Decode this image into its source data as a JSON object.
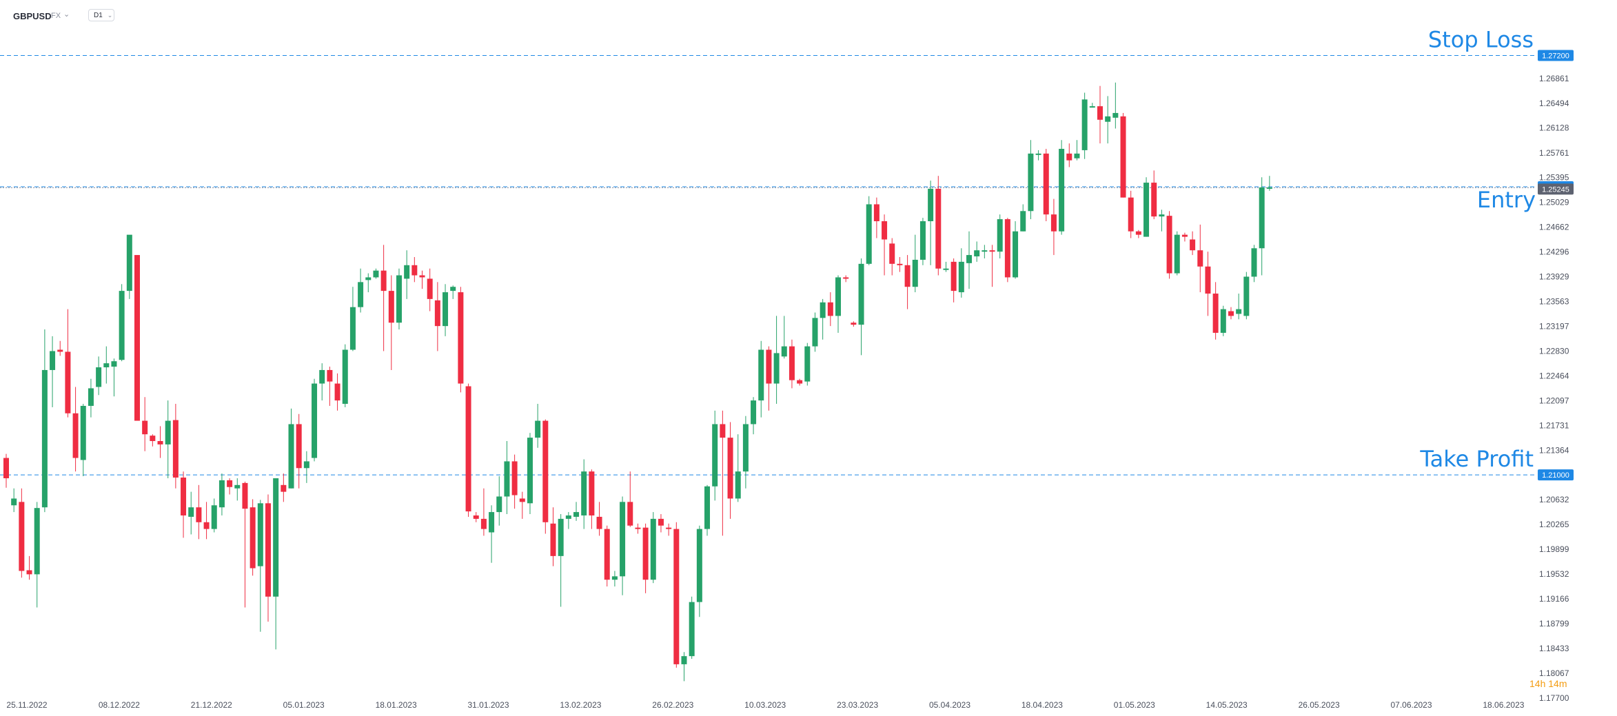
{
  "toolbar": {
    "symbol": "GBPUSD",
    "market": "FX",
    "timeframe": "D1"
  },
  "countdown": "14h 14m",
  "chart_data": {
    "type": "candlestick",
    "title": "",
    "xlabel": "",
    "ylabel": "",
    "ylim": [
      1.177,
      1.2746
    ],
    "y_ticks": [
      "1.27227",
      "1.26861",
      "1.26494",
      "1.26128",
      "1.25761",
      "1.25395",
      "1.25029",
      "1.24662",
      "1.24296",
      "1.23929",
      "1.23563",
      "1.23197",
      "1.22830",
      "1.22464",
      "1.22097",
      "1.21731",
      "1.21364",
      "1.20998",
      "1.20632",
      "1.20265",
      "1.19899",
      "1.19532",
      "1.19166",
      "1.18799",
      "1.18433",
      "1.18067",
      "1.17700"
    ],
    "x_ticks": [
      "25.11.2022",
      "08.12.2022",
      "21.12.2022",
      "05.01.2023",
      "18.01.2023",
      "31.01.2023",
      "13.02.2023",
      "26.02.2023",
      "10.03.2023",
      "23.03.2023",
      "05.04.2023",
      "18.04.2023",
      "01.05.2023",
      "14.05.2023",
      "26.05.2023",
      "07.06.2023",
      "18.06.2023"
    ],
    "current_price": "1.25245",
    "colors": {
      "up": "#26a269",
      "down": "#ef2d42",
      "level": "#1e88e5"
    },
    "levels": [
      {
        "name": "Stop Loss",
        "price": 1.272,
        "label": "1.27200"
      },
      {
        "name": "Entry",
        "price": 1.2526,
        "label": "1.25260"
      },
      {
        "name": "Take Profit",
        "price": 1.21,
        "label": "1.21000"
      }
    ],
    "candles": [
      [
        1.2125,
        1.2095,
        1.2131,
        1.2081
      ],
      [
        1.2055,
        1.2065,
        1.208,
        1.2045
      ],
      [
        1.206,
        1.1958,
        1.208,
        1.1948
      ],
      [
        1.1959,
        1.1953,
        1.198,
        1.1945
      ],
      [
        1.1953,
        1.2051,
        1.206,
        1.1904
      ],
      [
        1.2052,
        1.2255,
        1.2315,
        1.2045
      ],
      [
        1.2255,
        1.2283,
        1.2305,
        1.22
      ],
      [
        1.2285,
        1.2282,
        1.2298,
        1.2276
      ],
      [
        1.2282,
        1.2191,
        1.2345,
        1.2185
      ],
      [
        1.2191,
        1.2125,
        1.223,
        1.2105
      ],
      [
        1.2122,
        1.2202,
        1.2205,
        1.2098
      ],
      [
        1.2202,
        1.2228,
        1.2242,
        1.2185
      ],
      [
        1.223,
        1.2259,
        1.2275,
        1.2218
      ],
      [
        1.2259,
        1.2265,
        1.229,
        1.2235
      ],
      [
        1.226,
        1.2268,
        1.2272,
        1.2216
      ],
      [
        1.227,
        1.2372,
        1.2382,
        1.2268
      ],
      [
        1.2372,
        1.2455,
        1.2448,
        1.236
      ],
      [
        1.2425,
        1.218,
        1.2425,
        1.218
      ],
      [
        1.218,
        1.216,
        1.2215,
        1.2135
      ],
      [
        1.2158,
        1.215,
        1.216,
        1.2142
      ],
      [
        1.215,
        1.2145,
        1.2172,
        1.2125
      ],
      [
        1.2145,
        1.218,
        1.221,
        1.2095
      ],
      [
        1.2181,
        1.2096,
        1.2205,
        1.208
      ],
      [
        1.2096,
        1.204,
        1.2105,
        1.2007
      ],
      [
        1.2038,
        1.2052,
        1.2075,
        1.2012
      ],
      [
        1.2052,
        1.203,
        1.2085,
        1.2005
      ],
      [
        1.203,
        1.202,
        1.206,
        1.2005
      ],
      [
        1.202,
        1.2055,
        1.2065,
        1.2015
      ],
      [
        1.2052,
        1.2092,
        1.2102,
        1.204
      ],
      [
        1.2092,
        1.2082,
        1.2095,
        1.2071
      ],
      [
        1.208,
        1.2085,
        1.2095,
        1.2062
      ],
      [
        1.2088,
        1.205,
        1.209,
        1.1904
      ],
      [
        1.2052,
        1.1962,
        1.2064,
        1.1951
      ],
      [
        1.1965,
        1.2058,
        1.2063,
        1.1868
      ],
      [
        1.2058,
        1.192,
        1.2071,
        1.1883
      ],
      [
        1.192,
        1.2095,
        1.2095,
        1.1842
      ],
      [
        1.2085,
        1.2075,
        1.2102,
        1.206
      ],
      [
        1.208,
        1.2175,
        1.2198,
        1.208
      ],
      [
        1.2175,
        1.211,
        1.219,
        1.208
      ],
      [
        1.211,
        1.212,
        1.2135,
        1.2088
      ],
      [
        1.2125,
        1.2235,
        1.2242,
        1.212
      ],
      [
        1.2235,
        1.2255,
        1.2265,
        1.221
      ],
      [
        1.2255,
        1.2238,
        1.226,
        1.2202
      ],
      [
        1.2235,
        1.221,
        1.225,
        1.2195
      ],
      [
        1.2205,
        1.2285,
        1.2293,
        1.22
      ],
      [
        1.2285,
        1.2348,
        1.2378,
        1.2283
      ],
      [
        1.2348,
        1.2385,
        1.2405,
        1.234
      ],
      [
        1.2388,
        1.2392,
        1.2398,
        1.237
      ],
      [
        1.2392,
        1.2402,
        1.2405,
        1.239
      ],
      [
        1.2402,
        1.2372,
        1.244,
        1.2283
      ],
      [
        1.2372,
        1.2325,
        1.2395,
        1.2255
      ],
      [
        1.2325,
        1.2395,
        1.2405,
        1.2315
      ],
      [
        1.239,
        1.241,
        1.2432,
        1.236
      ],
      [
        1.241,
        1.2395,
        1.2422,
        1.2385
      ],
      [
        1.2395,
        1.2392,
        1.2402,
        1.2375
      ],
      [
        1.239,
        1.236,
        1.2405,
        1.2342
      ],
      [
        1.2358,
        1.232,
        1.2385,
        1.2283
      ],
      [
        1.232,
        1.237,
        1.2382,
        1.2305
      ],
      [
        1.2372,
        1.2378,
        1.238,
        1.236
      ],
      [
        1.237,
        1.2235,
        1.2378,
        1.2222
      ],
      [
        1.2231,
        1.2046,
        1.2235,
        1.2038
      ],
      [
        1.204,
        1.2035,
        1.2045,
        1.203
      ],
      [
        1.2035,
        1.202,
        1.208,
        1.201
      ],
      [
        1.2015,
        1.2045,
        1.2055,
        1.197
      ],
      [
        1.2045,
        1.2068,
        1.2098,
        1.2025
      ],
      [
        1.2068,
        1.212,
        1.215,
        1.2042
      ],
      [
        1.212,
        1.207,
        1.213,
        1.205
      ],
      [
        1.2065,
        1.206,
        1.2075,
        1.2035
      ],
      [
        1.2058,
        1.2155,
        1.2162,
        1.2042
      ],
      [
        1.2155,
        1.218,
        1.2205,
        1.214
      ],
      [
        1.218,
        1.203,
        1.2182,
        1.2013
      ],
      [
        1.2028,
        1.198,
        1.2052,
        1.1965
      ],
      [
        1.198,
        1.2035,
        1.2042,
        1.1905
      ],
      [
        1.2035,
        1.204,
        1.2045,
        1.202
      ],
      [
        1.2038,
        1.2045,
        1.206,
        1.2032
      ],
      [
        1.204,
        1.2105,
        1.2123,
        1.202
      ],
      [
        1.2105,
        1.204,
        1.2108,
        1.202
      ],
      [
        1.2038,
        1.202,
        1.206,
        1.201
      ],
      [
        1.202,
        1.1945,
        1.2025,
        1.1935
      ],
      [
        1.1945,
        1.195,
        1.1958,
        1.1935
      ],
      [
        1.195,
        1.206,
        1.2068,
        1.1922
      ],
      [
        1.206,
        1.2025,
        1.2105,
        1.2023
      ],
      [
        1.2022,
        1.202,
        1.2028,
        1.2013
      ],
      [
        1.2022,
        1.1945,
        1.2028,
        1.1925
      ],
      [
        1.1945,
        1.2035,
        1.2045,
        1.194
      ],
      [
        1.2035,
        1.2025,
        1.2042,
        1.2015
      ],
      [
        1.2022,
        1.202,
        1.2028,
        1.201
      ],
      [
        1.202,
        1.182,
        1.203,
        1.1815
      ],
      [
        1.182,
        1.1832,
        1.1838,
        1.1795
      ],
      [
        1.1832,
        1.1912,
        1.192,
        1.1828
      ],
      [
        1.1912,
        1.202,
        1.2025,
        1.189
      ],
      [
        1.202,
        1.2083,
        1.2085,
        1.201
      ],
      [
        1.2083,
        1.2175,
        1.2195,
        1.2062
      ],
      [
        1.2175,
        1.2155,
        1.2195,
        1.201
      ],
      [
        1.2155,
        1.2065,
        1.2178,
        1.2035
      ],
      [
        1.2065,
        1.2105,
        1.216,
        1.206
      ],
      [
        1.2105,
        1.2175,
        1.2187,
        1.208
      ],
      [
        1.2175,
        1.221,
        1.2215,
        1.216
      ],
      [
        1.221,
        1.2285,
        1.2298,
        1.2185
      ],
      [
        1.2285,
        1.2235,
        1.229,
        1.2195
      ],
      [
        1.2235,
        1.228,
        1.2335,
        1.2205
      ],
      [
        1.2275,
        1.229,
        1.2335,
        1.2272
      ],
      [
        1.229,
        1.224,
        1.23,
        1.2228
      ],
      [
        1.224,
        1.2235,
        1.2242,
        1.2232
      ],
      [
        1.2238,
        1.229,
        1.2295,
        1.2232
      ],
      [
        1.229,
        1.2332,
        1.234,
        1.2282
      ],
      [
        1.2332,
        1.2355,
        1.236,
        1.23
      ],
      [
        1.2355,
        1.2335,
        1.237,
        1.232
      ],
      [
        1.2335,
        1.2392,
        1.2395,
        1.231
      ],
      [
        1.2392,
        1.239,
        1.2395,
        1.2385
      ],
      [
        1.2325,
        1.2322,
        1.2327,
        1.2319
      ],
      [
        1.2322,
        1.2412,
        1.242,
        1.2277
      ],
      [
        1.2412,
        1.25,
        1.2512,
        1.241
      ],
      [
        1.25,
        1.2475,
        1.251,
        1.245
      ],
      [
        1.2475,
        1.2448,
        1.2485,
        1.2395
      ],
      [
        1.2442,
        1.2412,
        1.245,
        1.2395
      ],
      [
        1.2412,
        1.241,
        1.2422,
        1.24
      ],
      [
        1.241,
        1.2378,
        1.2425,
        1.2345
      ],
      [
        1.2378,
        1.2418,
        1.2455,
        1.237
      ],
      [
        1.2418,
        1.2475,
        1.248,
        1.241
      ],
      [
        1.2475,
        1.2523,
        1.2535,
        1.241
      ],
      [
        1.2523,
        1.2405,
        1.2542,
        1.2395
      ],
      [
        1.2405,
        1.2405,
        1.2415,
        1.24
      ],
      [
        1.2415,
        1.2372,
        1.242,
        1.2355
      ],
      [
        1.237,
        1.2415,
        1.2435,
        1.2362
      ],
      [
        1.2413,
        1.2425,
        1.246,
        1.2375
      ],
      [
        1.2423,
        1.2432,
        1.2445,
        1.2415
      ],
      [
        1.2432,
        1.2432,
        1.244,
        1.242
      ],
      [
        1.2432,
        1.243,
        1.244,
        1.2378
      ],
      [
        1.243,
        1.2478,
        1.2485,
        1.242
      ],
      [
        1.2478,
        1.2392,
        1.248,
        1.2385
      ],
      [
        1.2392,
        1.246,
        1.2475,
        1.239
      ],
      [
        1.246,
        1.249,
        1.25,
        1.246
      ],
      [
        1.249,
        1.2575,
        1.2595,
        1.2478
      ],
      [
        1.2575,
        1.2575,
        1.258,
        1.2565
      ],
      [
        1.2575,
        1.2485,
        1.2582,
        1.2475
      ],
      [
        1.2485,
        1.246,
        1.2508,
        1.2425
      ],
      [
        1.246,
        1.2582,
        1.2595,
        1.2455
      ],
      [
        1.2575,
        1.2565,
        1.259,
        1.2555
      ],
      [
        1.2568,
        1.2575,
        1.2595,
        1.2565
      ],
      [
        1.258,
        1.2655,
        1.2665,
        1.2567
      ],
      [
        1.2645,
        1.2645,
        1.265,
        1.2643
      ],
      [
        1.2645,
        1.2625,
        1.2675,
        1.259
      ],
      [
        1.2622,
        1.263,
        1.266,
        1.259
      ],
      [
        1.2628,
        1.2635,
        1.268,
        1.2612
      ],
      [
        1.263,
        1.251,
        1.2635,
        1.251
      ],
      [
        1.251,
        1.246,
        1.252,
        1.245
      ],
      [
        1.246,
        1.2455,
        1.2462,
        1.245
      ],
      [
        1.2452,
        1.2532,
        1.254,
        1.2452
      ],
      [
        1.2532,
        1.2482,
        1.255,
        1.2478
      ],
      [
        1.2482,
        1.2485,
        1.2492,
        1.246
      ],
      [
        1.2483,
        1.2398,
        1.249,
        1.239
      ],
      [
        1.2398,
        1.2455,
        1.246,
        1.2395
      ],
      [
        1.2455,
        1.2452,
        1.2458,
        1.2445
      ],
      [
        1.2448,
        1.2432,
        1.246,
        1.2425
      ],
      [
        1.2432,
        1.2408,
        1.247,
        1.237
      ],
      [
        1.2408,
        1.2368,
        1.243,
        1.2335
      ],
      [
        1.2368,
        1.231,
        1.2385,
        1.23
      ],
      [
        1.231,
        1.2345,
        1.235,
        1.2305
      ],
      [
        1.2342,
        1.2335,
        1.2348,
        1.233
      ],
      [
        1.2338,
        1.2345,
        1.2368,
        1.233
      ],
      [
        1.2335,
        1.2393,
        1.24,
        1.233
      ],
      [
        1.2393,
        1.2435,
        1.244,
        1.2385
      ],
      [
        1.2435,
        1.2525,
        1.254,
        1.2395
      ],
      [
        1.2525,
        1.2525,
        1.2542,
        1.252
      ]
    ]
  }
}
